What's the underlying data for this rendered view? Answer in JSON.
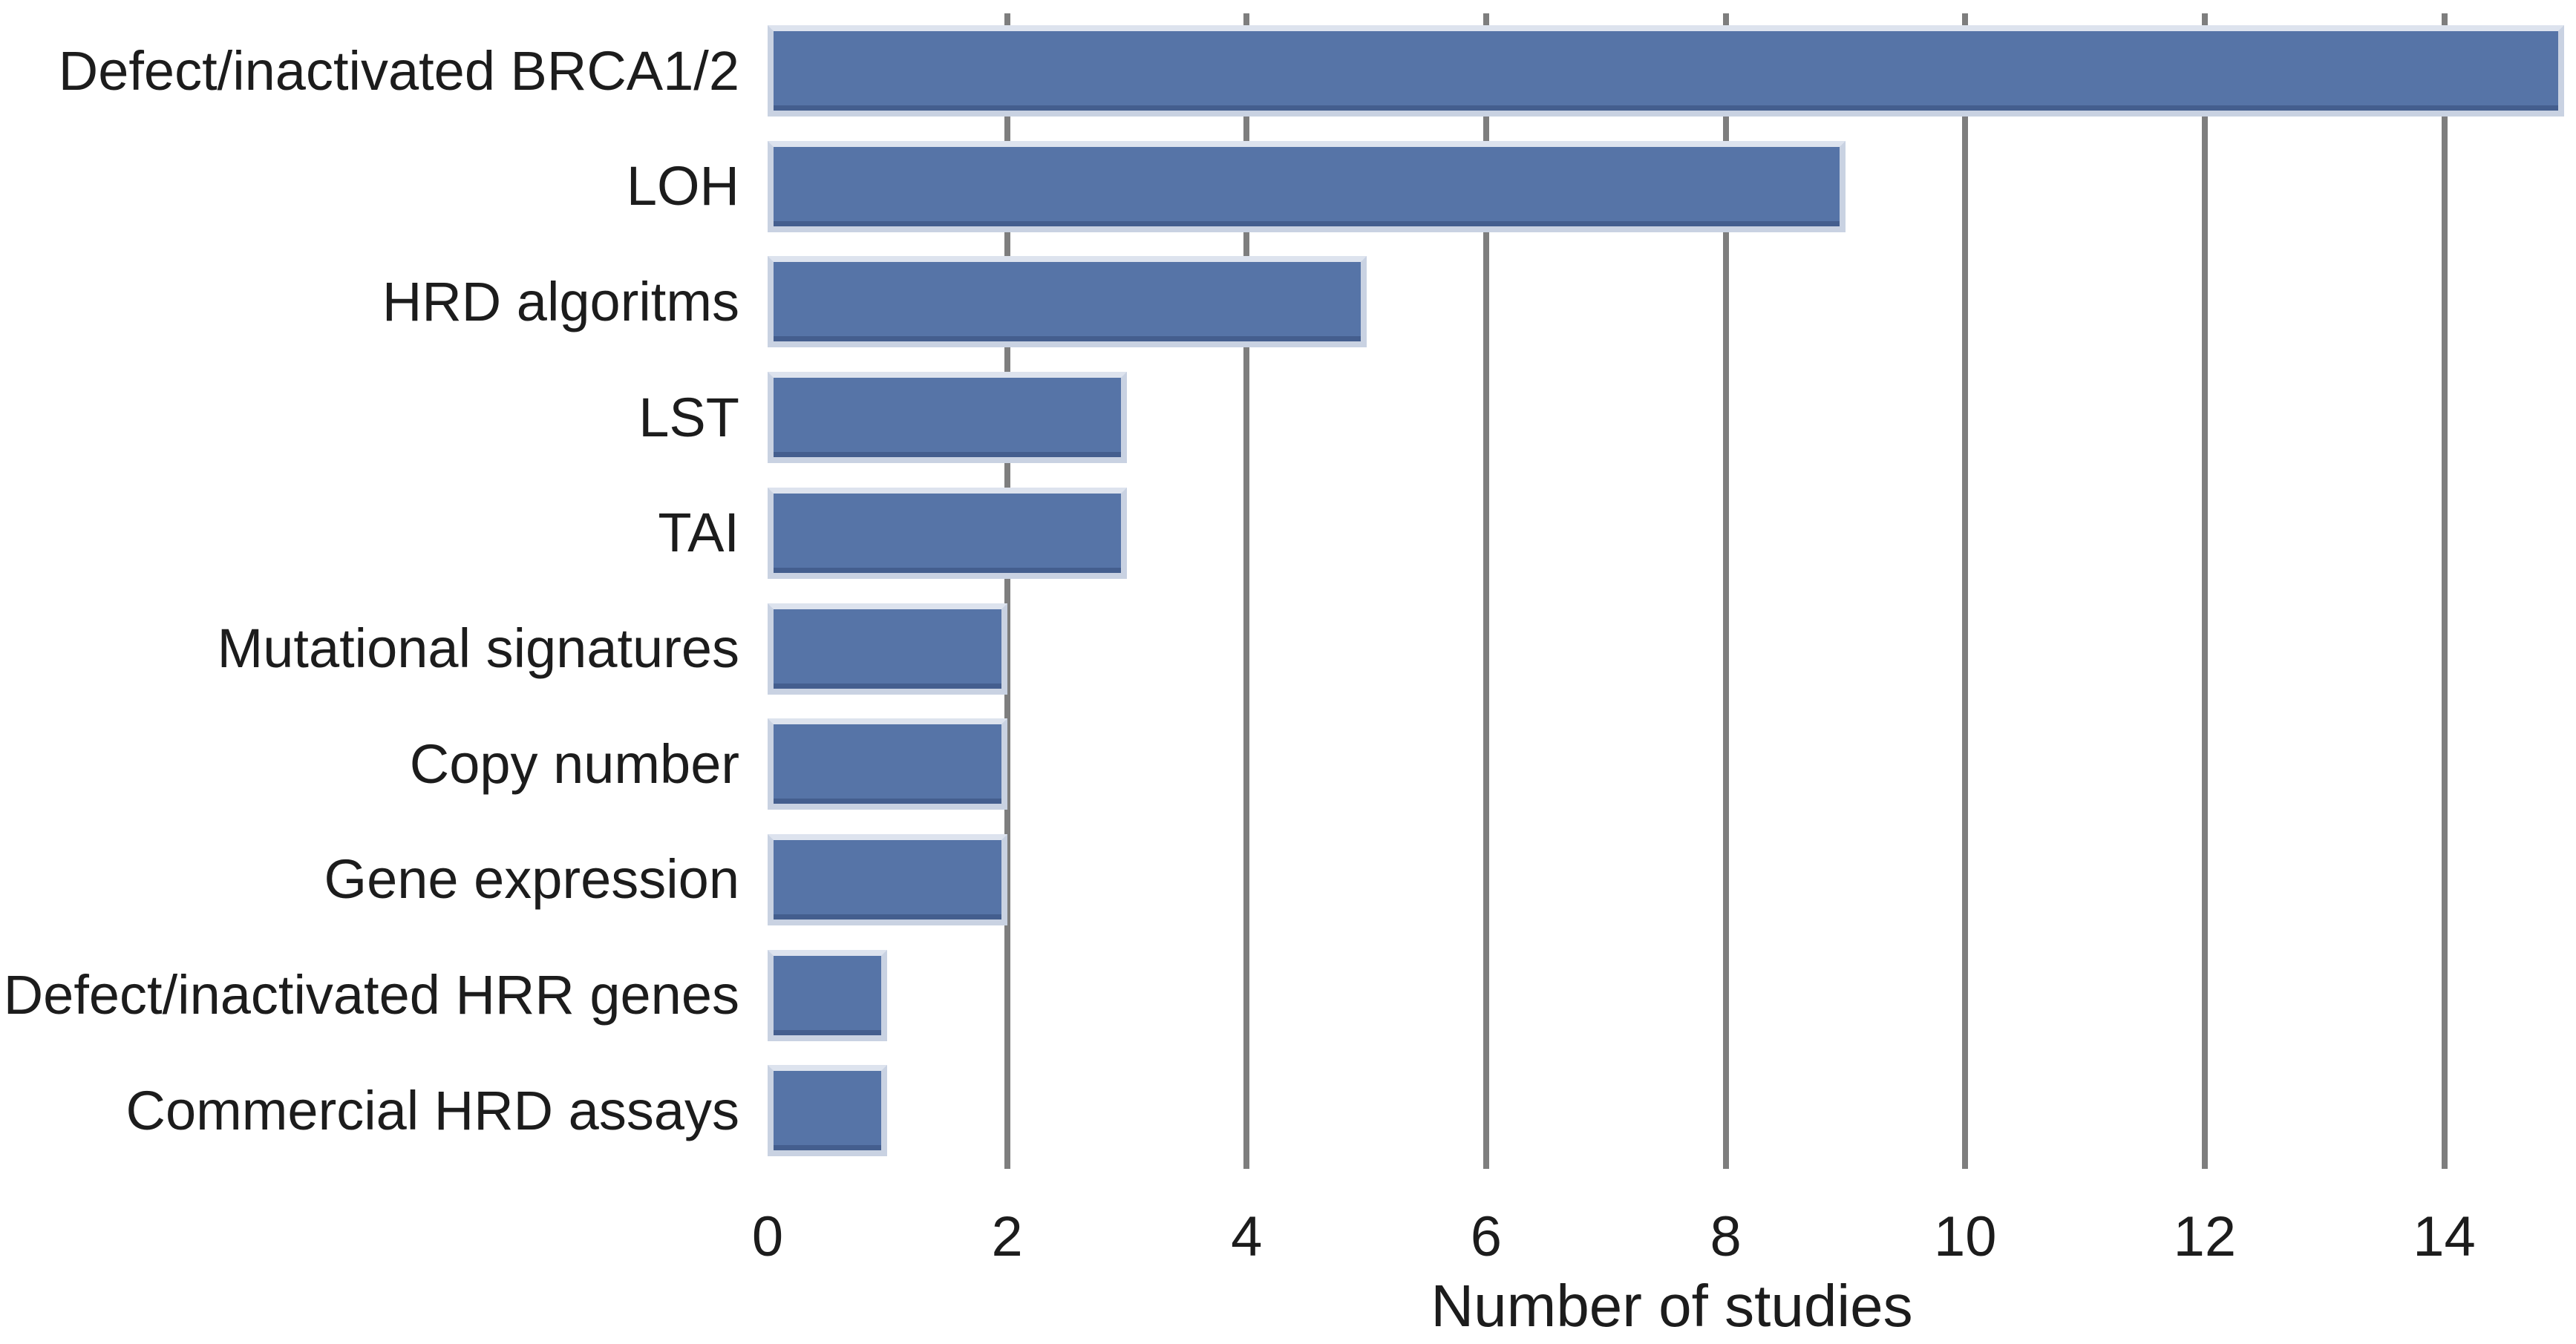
{
  "chart_data": {
    "type": "bar",
    "orientation": "horizontal",
    "title": "",
    "xlabel": "Number of studies",
    "ylabel": "",
    "categories": [
      "Defect/inactivated BRCA1/2",
      "LOH",
      "HRD algoritms",
      "LST",
      "TAI",
      "Mutational signatures",
      "Copy number",
      "Gene expression",
      "Defect/inactivated HRR genes",
      "Commercial HRD assays"
    ],
    "values": [
      15,
      9,
      5,
      3,
      3,
      2,
      2,
      2,
      1,
      1
    ],
    "x_ticks": [
      0,
      2,
      4,
      6,
      8,
      10,
      12,
      14
    ],
    "xlim": [
      0,
      15.1
    ],
    "grid": "vertical gridlines at ticks 2-14, drawn under bars",
    "legend": "none",
    "colors": {
      "bar_fill": "#5674a7",
      "bar_edge": "#c9d2e2",
      "bar_edge_top": "#dde3ee",
      "gridline": "#7e7e7e",
      "text": "#1c1c1c",
      "background": "#ffffff"
    }
  }
}
